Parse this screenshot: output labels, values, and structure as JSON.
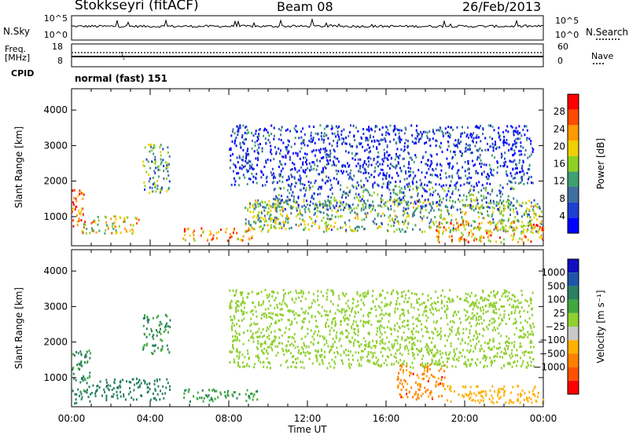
{
  "header": {
    "station": "Stokkseyri (fitACF)",
    "beam": "Beam 08",
    "date": "26/Feb/2013"
  },
  "side_labels": {
    "nsky": "N.Sky",
    "freq_line1": "Freq.",
    "freq_line2": "[MHz]",
    "cpid": "CPID",
    "nsearch": "N.Search",
    "nave": "Nave",
    "cpid_value": "normal (fast) 151"
  },
  "colors": {
    "power_scale": [
      "#0000ff",
      "#1e3fd0",
      "#3f6fa0",
      "#3fa070",
      "#8fcf20",
      "#f0d000",
      "#ff9a00",
      "#ff4a00",
      "#ff0000"
    ],
    "velocity_scale": [
      "#1010c0",
      "#1f55a8",
      "#2a8060",
      "#3fa83f",
      "#90d030",
      "#c8c8c8",
      "#ffb000",
      "#ff8000",
      "#ff5000",
      "#ff0000"
    ],
    "ground_scatter": "#c8c8c8"
  },
  "chart_data": [
    {
      "type": "line",
      "title": "N.Sky / N.Search",
      "ylabel": "N.Sky",
      "y_tick_labels": [
        "10^5",
        "10^0"
      ],
      "right_tick_labels": [
        "10^5",
        "10^0"
      ]
    },
    {
      "type": "line",
      "ylabel": "Freq. [MHz]",
      "y_tick_labels": [
        "18",
        "8"
      ],
      "right_tick_labels": [
        "60",
        "0"
      ],
      "series": [
        {
          "name": "Freq.",
          "values": [
            10.5,
            10.5
          ]
        },
        {
          "name": "Nave",
          "values": [
            13,
            13
          ]
        }
      ]
    },
    {
      "type": "heatmap",
      "title": "Power",
      "xlabel": "",
      "ylabel": "Slant Range [km]",
      "ylim": [
        180,
        4600
      ],
      "xlim": [
        0,
        24
      ],
      "y_ticks": [
        1000,
        2000,
        3000,
        4000
      ],
      "y_tick_labels": [
        "1000",
        "2000",
        "3000",
        "4000"
      ],
      "colorbar": {
        "label": "Power [dB]",
        "range": [
          0,
          32
        ],
        "ticks": [
          4,
          8,
          12,
          16,
          20,
          24,
          28
        ],
        "tick_labels": [
          "4",
          "8",
          "12",
          "16",
          "20",
          "24",
          "28"
        ]
      },
      "regions": [
        {
          "t": [
            0.0,
            0.7
          ],
          "r": [
            600,
            1800
          ],
          "level": 0.8
        },
        {
          "t": [
            0.5,
            3.4
          ],
          "r": [
            550,
            1050
          ],
          "level": 0.6
        },
        {
          "t": [
            3.6,
            5.0
          ],
          "r": [
            1700,
            3100
          ],
          "level": 0.4
        },
        {
          "t": [
            5.6,
            9.2
          ],
          "r": [
            350,
            700
          ],
          "level": 0.75
        },
        {
          "t": [
            8.8,
            10.5
          ],
          "r": [
            700,
            1500
          ],
          "level": 0.5
        },
        {
          "t": [
            9.0,
            24.0
          ],
          "r": [
            600,
            1500
          ],
          "level": 0.45
        },
        {
          "t": [
            10.2,
            22.5
          ],
          "r": [
            1200,
            1900
          ],
          "level": 0.3
        },
        {
          "t": [
            8.0,
            23.5
          ],
          "r": [
            1900,
            3600
          ],
          "level": 0.15
        },
        {
          "t": [
            18.5,
            24.0
          ],
          "r": [
            300,
            900
          ],
          "level": 0.7
        }
      ]
    },
    {
      "type": "heatmap",
      "title": "Velocity",
      "xlabel": "Time UT",
      "ylabel": "Slant Range [km]",
      "ylim": [
        180,
        4600
      ],
      "xlim": [
        0,
        24
      ],
      "y_ticks": [
        1000,
        2000,
        3000,
        4000
      ],
      "y_tick_labels": [
        "1000",
        "2000",
        "3000",
        "4000"
      ],
      "x_ticks": [
        0,
        4,
        8,
        12,
        16,
        20,
        24
      ],
      "x_tick_labels": [
        "00:00",
        "04:00",
        "08:00",
        "12:00",
        "16:00",
        "20:00",
        "00:00"
      ],
      "colorbar": {
        "label": "Velocity [m s⁻¹]",
        "boundaries": [
          1000,
          500,
          100,
          25,
          -25,
          -100,
          -500,
          -1000
        ],
        "tick_labels": [
          "1000",
          "500",
          "100",
          "25",
          "−25",
          "−100",
          "−500",
          "−1000"
        ]
      },
      "regions": [
        {
          "t": [
            0.0,
            1.0
          ],
          "r": [
            300,
            1800
          ],
          "vel": 150
        },
        {
          "t": [
            1.0,
            5.0
          ],
          "r": [
            400,
            1000
          ],
          "vel": 200
        },
        {
          "t": [
            3.6,
            5.0
          ],
          "r": [
            1700,
            2800
          ],
          "vel": 100
        },
        {
          "t": [
            5.6,
            9.5
          ],
          "r": [
            350,
            700
          ],
          "vel": 80
        },
        {
          "t": [
            8.0,
            23.5
          ],
          "r": [
            1300,
            3500
          ],
          "vel": 0
        },
        {
          "t": [
            16.5,
            19.0
          ],
          "r": [
            400,
            1400
          ],
          "vel": -700
        },
        {
          "t": [
            19.0,
            24.0
          ],
          "r": [
            300,
            800
          ],
          "vel": -300
        }
      ]
    }
  ]
}
